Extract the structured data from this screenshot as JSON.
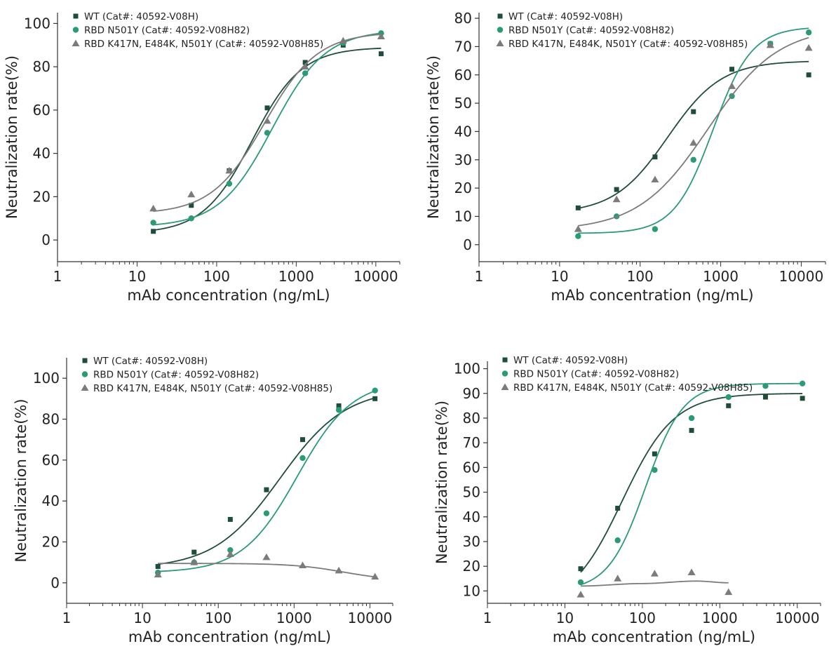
{
  "colors": {
    "wt": "#1f4d3a",
    "n501y": "#2a9a78",
    "triple": "#7b7b7b"
  },
  "chart_data": [
    {
      "type": "scatter",
      "xscale": "log",
      "xlim": [
        1,
        20000
      ],
      "ylim": [
        -10,
        105
      ],
      "xticks": [
        "1",
        "10",
        "100",
        "1000",
        "10000"
      ],
      "yticks": [
        "0",
        "20",
        "40",
        "60",
        "80",
        "100"
      ],
      "xlabel": "mAb concentration (ng/mL)",
      "ylabel": "Neutralization rate(%)",
      "legend_position": "top-left",
      "series": [
        {
          "name": "WT (Cat#: 40592-V08H)",
          "marker": "square",
          "x": [
            16,
            48,
            144,
            432,
            1296,
            3888,
            11664
          ],
          "y": [
            4,
            16,
            32,
            61,
            82,
            90,
            86
          ],
          "fit": {
            "bottom": 3,
            "top": 89,
            "ec50": 280,
            "hill": 1.4
          }
        },
        {
          "name": "RBD N501Y (Cat#: 40592-V08H82)",
          "marker": "circle",
          "x": [
            16,
            48,
            144,
            432,
            1296,
            3888,
            11664
          ],
          "y": [
            8,
            10,
            26,
            49.5,
            77,
            91,
            95.5
          ],
          "fit": {
            "bottom": 6,
            "top": 97,
            "ec50": 500,
            "hill": 1.3
          }
        },
        {
          "name": "RBD K417N, E484K, N501Y (Cat#: 40592-V08H85)",
          "marker": "triangle",
          "x": [
            16,
            48,
            144,
            432,
            1296,
            3888,
            11664
          ],
          "y": [
            14.5,
            21,
            32,
            55,
            80,
            92,
            94
          ],
          "fit": {
            "bottom": 12,
            "top": 96,
            "ec50": 400,
            "hill": 1.3
          }
        }
      ]
    },
    {
      "type": "scatter",
      "xscale": "log",
      "xlim": [
        1,
        20000
      ],
      "ylim": [
        -6,
        82
      ],
      "xticks": [
        "1",
        "10",
        "100",
        "1000",
        "10000"
      ],
      "yticks": [
        "0",
        "10",
        "20",
        "30",
        "40",
        "50",
        "60",
        "70",
        "80"
      ],
      "xlabel": "mAb concentration (ng/mL)",
      "ylabel": "Neutralization rate(%)",
      "legend_position": "top-left",
      "series": [
        {
          "name": "WT (Cat#: 40592-V08H)",
          "marker": "square",
          "x": [
            17,
            51,
            153,
            459,
            1377,
            4131,
            12393
          ],
          "y": [
            13,
            19.5,
            31,
            47,
            62,
            71,
            60
          ],
          "fit": {
            "bottom": 11,
            "top": 65,
            "ec50": 220,
            "hill": 1.3
          }
        },
        {
          "name": "RBD N501Y (Cat#: 40592-V08H82)",
          "marker": "circle",
          "x": [
            17,
            51,
            153,
            459,
            1377,
            4131,
            12393
          ],
          "y": [
            3,
            10,
            5.5,
            30,
            52.5,
            71,
            75
          ],
          "fit": {
            "bottom": 4,
            "top": 77,
            "ec50": 800,
            "hill": 1.8
          }
        },
        {
          "name": "RBD K417N, E484K, N501Y (Cat#: 40592-V08H85)",
          "marker": "triangle",
          "x": [
            17,
            51,
            153,
            459,
            1377,
            4131,
            12393
          ],
          "y": [
            5.5,
            16,
            23,
            36,
            56,
            70.5,
            69.5
          ],
          "fit": {
            "bottom": 5,
            "top": 77,
            "ec50": 700,
            "hill": 1.0
          }
        }
      ]
    },
    {
      "type": "scatter",
      "xscale": "log",
      "xlim": [
        1,
        20000
      ],
      "ylim": [
        -10,
        110
      ],
      "xticks": [
        "1",
        "10",
        "100",
        "1000",
        "10000"
      ],
      "yticks": [
        "0",
        "20",
        "40",
        "60",
        "80",
        "100"
      ],
      "xlabel": "mAb concentration (ng/mL)",
      "ylabel": "Neutralization rate(%)",
      "legend_position": "top-left",
      "series": [
        {
          "name": "WT (Cat#: 40592-V08H)",
          "marker": "square",
          "x": [
            16,
            48,
            144,
            432,
            1296,
            3888,
            11664
          ],
          "y": [
            8,
            15,
            31,
            45.5,
            70,
            86.5,
            90
          ],
          "fit": {
            "bottom": 7,
            "top": 95,
            "ec50": 650,
            "hill": 1.0
          }
        },
        {
          "name": "RBD N501Y (Cat#: 40592-V08H82)",
          "marker": "circle",
          "x": [
            16,
            48,
            144,
            432,
            1296,
            3888,
            11664
          ],
          "y": [
            5,
            10,
            16,
            34,
            61,
            84.5,
            94
          ],
          "fit": {
            "bottom": 5,
            "top": 99,
            "ec50": 1100,
            "hill": 1.2
          }
        },
        {
          "name": "RBD K417N, E484K, N501Y (Cat#: 40592-V08H85)",
          "marker": "triangle",
          "x": [
            16,
            48,
            144,
            432,
            1296,
            3888,
            11664
          ],
          "y": [
            4,
            10,
            14,
            12.5,
            8.5,
            6,
            3
          ],
          "fit": {
            "bottom": 9.5,
            "top": 1,
            "ec50": 4500,
            "hill": 1.3
          }
        }
      ]
    },
    {
      "type": "scatter",
      "xscale": "log",
      "xlim": [
        1,
        20000
      ],
      "ylim": [
        5,
        103
      ],
      "xticks": [
        "1",
        "10",
        "100",
        "1000",
        "10000"
      ],
      "yticks": [
        "10",
        "20",
        "30",
        "40",
        "50",
        "60",
        "70",
        "80",
        "90",
        "100"
      ],
      "xlabel": "mAb concentration (ng/mL)",
      "ylabel": "Neutralization rate(%)",
      "legend_position": "top-left",
      "series": [
        {
          "name": "WT (Cat#: 40592-V08H)",
          "marker": "square",
          "x": [
            16,
            48,
            144,
            432,
            1296,
            3888,
            11664
          ],
          "y": [
            19,
            43.5,
            65.5,
            75,
            85,
            88.5,
            88
          ],
          "fit": {
            "bottom": 3,
            "top": 90,
            "ec50": 55,
            "hill": 1.3
          }
        },
        {
          "name": "RBD N501Y (Cat#: 40592-V08H82)",
          "marker": "circle",
          "x": [
            16,
            48,
            144,
            432,
            1296,
            3888,
            11664
          ],
          "y": [
            13.5,
            30.5,
            59,
            80,
            88.5,
            93,
            94
          ],
          "fit": {
            "bottom": 10,
            "top": 94,
            "ec50": 110,
            "hill": 1.8
          }
        },
        {
          "name": "RBD K417N, E484K, N501Y (Cat#: 40592-V08H85)",
          "marker": "triangle",
          "x": [
            16,
            48,
            144,
            432,
            1296
          ],
          "y": [
            8.5,
            15,
            17,
            17.5,
            9.5
          ],
          "fit": {
            "type": "hump",
            "points": [
              [
                16,
                12
              ],
              [
                100,
                13
              ],
              [
                500,
                14
              ],
              [
                1296,
                13.3
              ]
            ]
          }
        }
      ]
    }
  ]
}
